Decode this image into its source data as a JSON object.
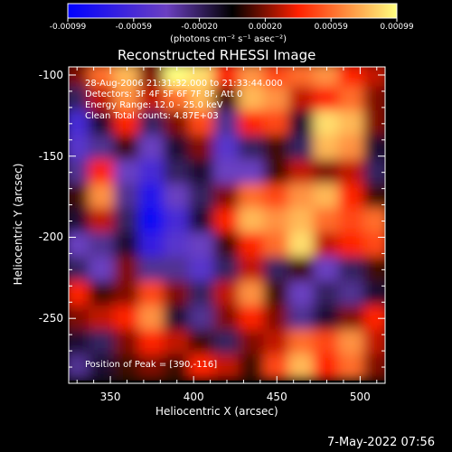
{
  "colorbar": {
    "ticks": [
      "-0.00099",
      "-0.00059",
      "-0.00020",
      "0.00020",
      "0.00059",
      "0.00099"
    ],
    "units": "(photons cm⁻² s⁻¹ asec⁻²)"
  },
  "annotations": {
    "time": "28-Aug-2006 21:31:32.000 to 21:33:44.000",
    "detectors": "Detectors: 3F 4F 5F 6F 7F 8F, Att 0",
    "energy": "Energy Range: 12.0 - 25.0 keV",
    "clean": "Clean   Total counts: 4.87E+03",
    "peak": "Position of Peak = [390,-116]"
  },
  "footer": {
    "timestamp": "7-May-2022 07:56"
  },
  "colors": {
    "low": "#0000ff",
    "mid_low": "#6b3fc1",
    "mid": "#000000",
    "mid_high": "#ff2000",
    "high": "#ffff80",
    "background": "#000000"
  },
  "chart_data": {
    "type": "heatmap",
    "title": "Reconstructed RHESSI Image",
    "xlabel": "Heliocentric X (arcsec)",
    "ylabel": "Heliocentric Y (arcsec)",
    "xlim": [
      325,
      515
    ],
    "ylim": [
      -290,
      -95
    ],
    "xticks": [
      "350",
      "400",
      "450",
      "500"
    ],
    "yticks": [
      "-100",
      "-150",
      "-200",
      "-250"
    ],
    "colorscale_range": [
      -0.00099,
      0.00099
    ],
    "peak": [
      390,
      -116
    ],
    "grid_x": [
      330,
      345,
      360,
      375,
      390,
      405,
      420,
      435,
      450,
      465,
      480,
      495,
      510
    ],
    "grid_y": [
      -100,
      -115,
      -130,
      -145,
      -160,
      -175,
      -190,
      -205,
      -220,
      -235,
      -250,
      -265,
      -280
    ],
    "values": [
      [
        0.0002,
        0.0006,
        0.0008,
        0.0002,
        0.00099,
        0.0009,
        0.0004,
        0.0007,
        0.0005,
        0.0006,
        0.0007,
        0.0004,
        0.0003
      ],
      [
        -0.0002,
        0.0003,
        0.0007,
        0.0003,
        0.0006,
        0.0008,
        0.0001,
        0.0008,
        0.0007,
        0.0003,
        0.0004,
        0.0006,
        0.0002
      ],
      [
        -0.0006,
        -0.0001,
        0.0004,
        -0.0002,
        0.0002,
        0.0005,
        -0.0003,
        0.0004,
        0.0005,
        -0.0001,
        0.0009,
        0.0008,
        0.0002
      ],
      [
        -0.0005,
        -0.0003,
        0.0001,
        -0.0004,
        -0.0001,
        0.0002,
        -0.0005,
        -0.0002,
        0.0001,
        -0.0002,
        0.0008,
        0.0007,
        -0.0001
      ],
      [
        -0.0003,
        0.0004,
        -0.0004,
        -0.0006,
        -0.0002,
        -0.0001,
        -0.0004,
        -0.0004,
        0.0001,
        0.0003,
        0.0002,
        0.0003,
        -0.0002
      ],
      [
        0.0001,
        0.0007,
        -0.0003,
        -0.0008,
        -0.0004,
        -0.0002,
        0.0002,
        0.0006,
        0.0005,
        0.0007,
        0.0008,
        0.0004,
        0.0001
      ],
      [
        -0.0001,
        0.0003,
        -0.0002,
        -0.0009,
        -0.0006,
        -0.0001,
        0.0004,
        0.0008,
        0.0007,
        0.0008,
        0.0006,
        0.0005,
        0.0006
      ],
      [
        -0.0004,
        -0.0003,
        -0.0001,
        -0.0007,
        -0.0005,
        -0.0004,
        0.0001,
        0.0004,
        0.0006,
        0.0009,
        0.0003,
        0.0004,
        0.0005
      ],
      [
        -0.0002,
        -0.0004,
        0.0002,
        -0.0003,
        -0.0003,
        -0.0005,
        -0.0002,
        0.0003,
        -0.0002,
        0.0001,
        -0.0004,
        -0.0002,
        0.0001
      ],
      [
        0.0004,
        0.0001,
        0.0002,
        0.0005,
        0.0002,
        -0.0002,
        0.0003,
        0.0007,
        0.0001,
        -0.0004,
        -0.0002,
        -0.0003,
        -0.0001
      ],
      [
        0.0002,
        0.0003,
        0.0004,
        0.0007,
        -0.0001,
        -0.0003,
        0.0002,
        0.0004,
        0.0002,
        -0.0003,
        -0.0001,
        0.0002,
        0.0004
      ],
      [
        -0.0001,
        -0.0002,
        0.0002,
        0.0004,
        0.0003,
        0.0001,
        -0.0002,
        0.0002,
        0.0003,
        0.0006,
        0.0005,
        0.0007,
        0.0003
      ],
      [
        -0.0003,
        -0.0001,
        0.0001,
        0.0002,
        0.0001,
        0.0004,
        0.0003,
        0.0001,
        0.0005,
        0.0008,
        0.0004,
        0.0006,
        0.0002
      ]
    ]
  }
}
